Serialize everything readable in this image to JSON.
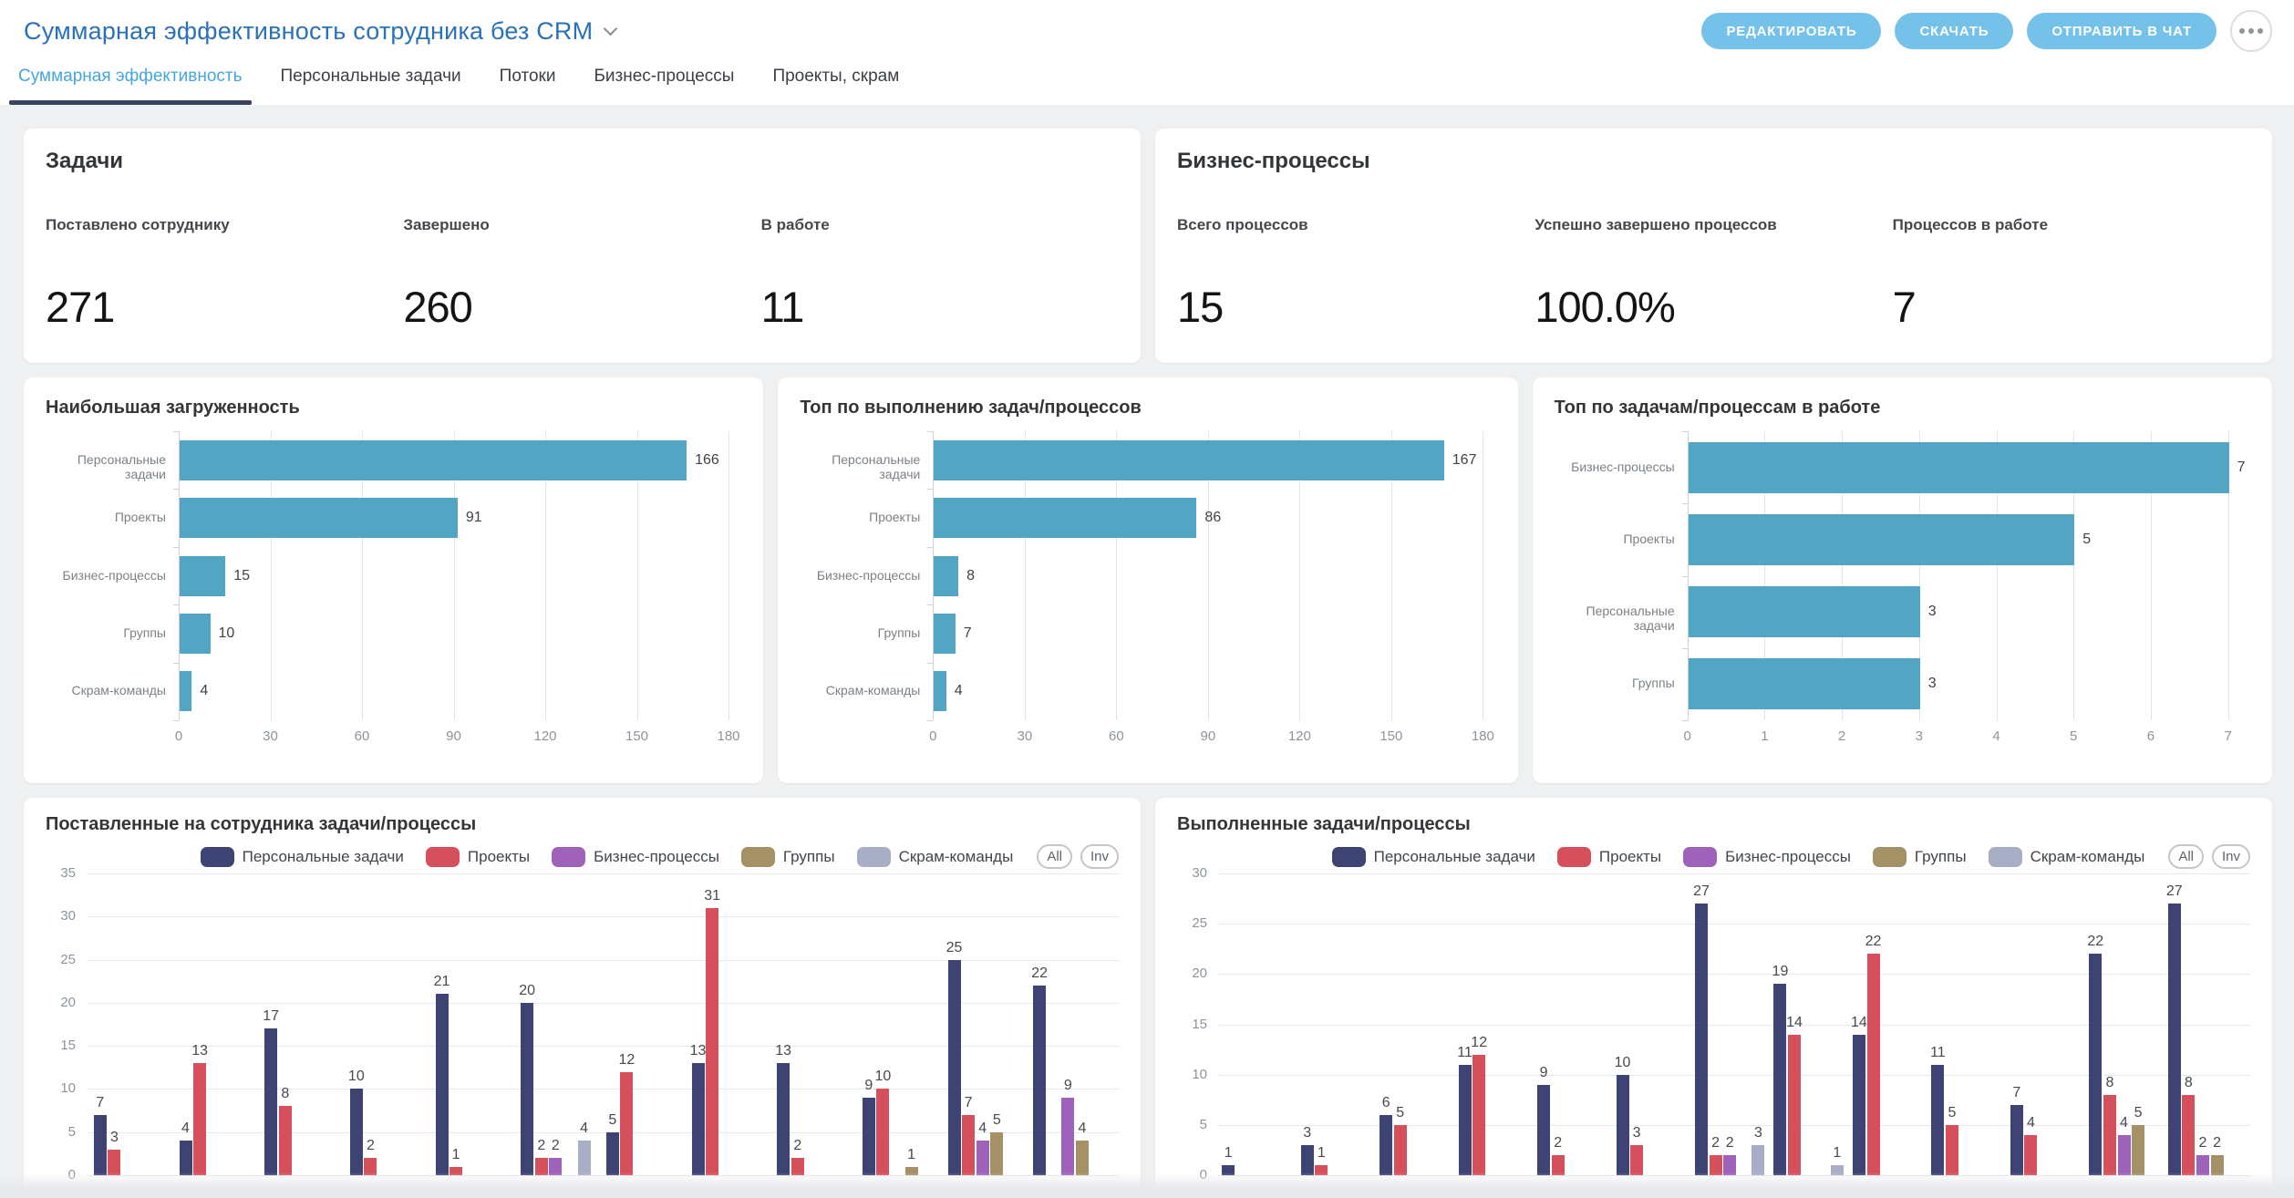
{
  "header": {
    "title": "Суммарная эффективность сотрудника без CRM",
    "actions": [
      {
        "label": "РЕДАКТИРОВАТЬ"
      },
      {
        "label": "СКАЧАТЬ"
      },
      {
        "label": "ОТПРАВИТЬ В ЧАТ"
      }
    ],
    "more_icon": "ellipsis",
    "colors": {
      "title": "#2a72b8",
      "button_bg": "#74c1e9",
      "tab_active": "#47a6d8",
      "tab_underline": "#39425f"
    }
  },
  "tabs": [
    {
      "label": "Суммарная эффективность",
      "active": true
    },
    {
      "label": "Персональные задачи",
      "active": false
    },
    {
      "label": "Потоки",
      "active": false
    },
    {
      "label": "Бизнес-процессы",
      "active": false
    },
    {
      "label": "Проекты, скрам",
      "active": false
    }
  ],
  "summary_cards": [
    {
      "title": "Задачи",
      "metrics": [
        {
          "label": "Поставлено сотруднику",
          "value": "271"
        },
        {
          "label": "Завершено",
          "value": "260"
        },
        {
          "label": "В работе",
          "value": "11"
        }
      ]
    },
    {
      "title": "Бизнес-процессы",
      "metrics": [
        {
          "label": "Всего процессов",
          "value": "15"
        },
        {
          "label": "Успешно завершено процессов",
          "value": "100.0%"
        },
        {
          "label": "Процессов в работе",
          "value": "7"
        }
      ]
    }
  ],
  "chart_data": [
    {
      "type": "bar",
      "orientation": "horizontal",
      "title": "Наибольшая загруженность",
      "categories": [
        "Персональные задачи",
        "Проекты",
        "Бизнес-процессы",
        "Группы",
        "Скрам-команды"
      ],
      "values": [
        166,
        91,
        15,
        10,
        4
      ],
      "xlim": [
        0,
        180
      ],
      "xticks": [
        0,
        30,
        60,
        90,
        120,
        150,
        180
      ],
      "bar_color": "#52a5c3",
      "grid": true
    },
    {
      "type": "bar",
      "orientation": "horizontal",
      "title": "Топ по выполнению задач/процессов",
      "categories": [
        "Персональные задачи",
        "Проекты",
        "Бизнес-процессы",
        "Группы",
        "Скрам-команды"
      ],
      "values": [
        167,
        86,
        8,
        7,
        4
      ],
      "xlim": [
        0,
        180
      ],
      "xticks": [
        0,
        30,
        60,
        90,
        120,
        150,
        180
      ],
      "bar_color": "#52a5c3",
      "grid": true
    },
    {
      "type": "bar",
      "orientation": "horizontal",
      "title": "Топ по задачам/процессам в работе",
      "categories": [
        "Бизнес-процессы",
        "Проекты",
        "Персональные задачи",
        "Группы"
      ],
      "values": [
        7,
        5,
        3,
        3
      ],
      "xlim": [
        0,
        7
      ],
      "xticks": [
        0,
        1,
        2,
        3,
        4,
        5,
        6,
        7
      ],
      "bar_color": "#52a5c3",
      "grid": true
    },
    {
      "type": "bar",
      "orientation": "vertical",
      "grouped": true,
      "title": "Поставленные на сотрудника задачи/процессы",
      "ylim": [
        0,
        35
      ],
      "yticks": [
        0,
        5,
        10,
        15,
        20,
        25,
        30,
        35
      ],
      "legend_position": "top-right",
      "legend_buttons": [
        "All",
        "Inv"
      ],
      "series": [
        {
          "name": "Персональные задачи",
          "color": "#3d4372",
          "values": [
            7,
            4,
            17,
            10,
            21,
            20,
            5,
            13,
            13,
            9,
            25,
            22
          ]
        },
        {
          "name": "Проекты",
          "color": "#d6505c",
          "values": [
            3,
            13,
            8,
            2,
            1,
            2,
            12,
            31,
            2,
            10,
            7,
            null
          ]
        },
        {
          "name": "Бизнес-процессы",
          "color": "#9e62ba",
          "values": [
            null,
            null,
            null,
            null,
            null,
            2,
            null,
            null,
            null,
            null,
            4,
            9
          ]
        },
        {
          "name": "Группы",
          "color": "#a59166",
          "values": [
            null,
            null,
            null,
            null,
            null,
            null,
            null,
            null,
            null,
            1,
            5,
            4
          ]
        },
        {
          "name": "Скрам-команды",
          "color": "#a7aec6",
          "values": [
            null,
            null,
            null,
            null,
            null,
            4,
            null,
            null,
            null,
            null,
            null,
            null
          ]
        }
      ]
    },
    {
      "type": "bar",
      "orientation": "vertical",
      "grouped": true,
      "title": "Выполненные задачи/процессы",
      "ylim": [
        0,
        30
      ],
      "yticks": [
        0,
        5,
        10,
        15,
        20,
        25,
        30
      ],
      "legend_position": "top-right",
      "legend_buttons": [
        "All",
        "Inv"
      ],
      "series": [
        {
          "name": "Персональные задачи",
          "color": "#3d4372",
          "values": [
            1,
            3,
            6,
            11,
            9,
            10,
            27,
            19,
            14,
            11,
            7,
            22,
            27
          ]
        },
        {
          "name": "Проекты",
          "color": "#d6505c",
          "values": [
            null,
            1,
            5,
            12,
            2,
            3,
            2,
            14,
            22,
            5,
            4,
            8,
            8
          ]
        },
        {
          "name": "Бизнес-процессы",
          "color": "#9e62ba",
          "values": [
            null,
            null,
            null,
            null,
            null,
            null,
            2,
            null,
            null,
            null,
            null,
            4,
            2
          ]
        },
        {
          "name": "Группы",
          "color": "#a59166",
          "values": [
            null,
            null,
            null,
            null,
            null,
            null,
            null,
            null,
            null,
            null,
            null,
            5,
            2
          ]
        },
        {
          "name": "Скрам-команды",
          "color": "#a7aec6",
          "values": [
            null,
            null,
            null,
            null,
            null,
            null,
            3,
            1,
            null,
            null,
            null,
            null,
            null
          ]
        }
      ]
    }
  ]
}
